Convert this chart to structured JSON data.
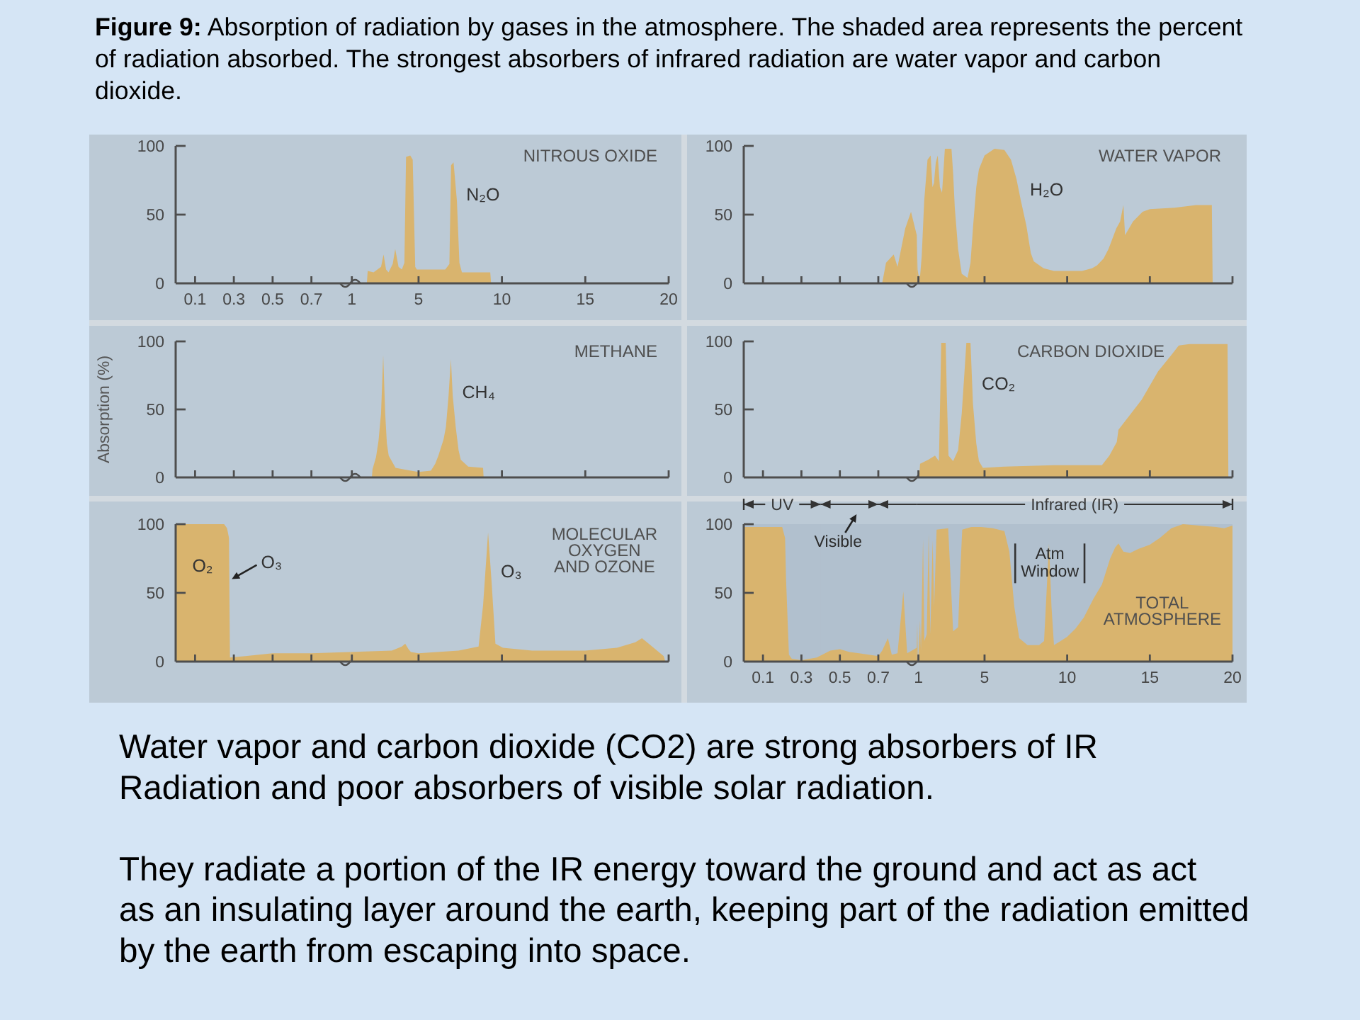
{
  "chart_data": [
    {
      "type": "other",
      "title": "Figure 9: Absorption of radiation by gases in the atmosphere. The shaded area represents the percent of radiation absorbed. The strongest absorbers of infrared radiation are water vapor and carbon dioxide."
    },
    {
      "type": "area",
      "xlim": [
        0,
        0.9
      ],
      "xticks": [
        0.1,
        0.3,
        0.5,
        0.7
      ],
      "ylim": [
        0,
        100
      ],
      "yticks": [
        0,
        50,
        100
      ]
    },
    {
      "type": "area",
      "title": "NITROUS OXIDE",
      "series": [
        {
          "name": "N₂O",
          "color": "#d9b46e",
          "x": [
            1.9,
            1.95,
            2.3,
            2.75,
            2.9,
            3.05,
            3.2,
            3.45,
            3.6,
            3.8,
            4.0,
            4.15,
            4.25,
            4.5,
            4.65,
            4.8,
            4.9,
            5.5,
            6.6,
            6.85,
            6.95,
            7.1,
            7.3,
            7.45,
            7.6,
            9.3,
            9.35
          ],
          "values": [
            0,
            9,
            8,
            12,
            21,
            10,
            8,
            14,
            25,
            12,
            10,
            15,
            92,
            93,
            90,
            12,
            10,
            10,
            10,
            14,
            86,
            88,
            60,
            15,
            8,
            8,
            0
          ]
        }
      ],
      "xlim": [
        0.9,
        20
      ],
      "xticks": [
        1,
        5,
        10,
        15,
        20
      ],
      "ylim": [
        0,
        100
      ],
      "tick_labels": "x"
    },
    {
      "type": "area",
      "series": [
        {
          "color": "#d9b46e",
          "x": [
            0.72,
            0.74,
            0.78,
            0.8,
            0.84,
            0.87,
            0.9
          ],
          "values": [
            0,
            15,
            21,
            12,
            40,
            52,
            35
          ]
        }
      ],
      "xlim": [
        0,
        0.9
      ],
      "xticks": [
        0.1,
        0.3,
        0.5,
        0.7
      ],
      "ylim": [
        0,
        100
      ],
      "yticks": [
        0,
        50,
        100
      ],
      "tick_labels": "y"
    },
    {
      "type": "area",
      "title": "WATER VAPOR",
      "series": [
        {
          "name": "H₂O",
          "color": "#d9b46e",
          "x": [
            0.9,
            0.95,
            1.0,
            1.1,
            1.2,
            1.35,
            1.55,
            1.74,
            1.85,
            1.94,
            2.05,
            2.17,
            2.3,
            2.43,
            2.6,
            3.0,
            3.1,
            3.2,
            3.4,
            3.62,
            3.97,
            4.15,
            4.31,
            4.5,
            4.66,
            5.0,
            5.6,
            6.2,
            6.6,
            6.93,
            7.2,
            7.53,
            7.8,
            7.98,
            8.57,
            9.2,
            9.76,
            10.9,
            11.5,
            11.8,
            12.2,
            12.5,
            12.97,
            13.2,
            13.4,
            13.5,
            13.98,
            14.56,
            15,
            16.5,
            17.8,
            18.75,
            18.8
          ],
          "values": [
            35,
            10,
            6,
            5,
            20,
            60,
            90,
            93,
            70,
            73,
            88,
            93,
            70,
            66,
            98,
            98,
            80,
            55,
            25,
            7,
            4,
            15,
            42,
            70,
            83,
            93,
            98,
            97,
            90,
            76,
            60,
            42,
            22,
            16,
            11,
            9,
            9,
            9,
            11,
            13,
            18,
            25,
            40,
            45,
            57,
            35,
            45,
            52,
            54,
            55,
            57,
            57,
            0
          ]
        }
      ],
      "xlim": [
        0.9,
        20
      ],
      "xticks": [
        1,
        5,
        10,
        15,
        20
      ],
      "ylim": [
        0,
        100
      ],
      "tick_labels": false
    },
    {
      "type": "area",
      "ylabel": "Absorption (%)",
      "xlim": [
        0,
        0.9
      ],
      "xticks": [
        0.1,
        0.3,
        0.5,
        0.7
      ],
      "ylim": [
        0,
        100
      ],
      "yticks": [
        0,
        50,
        100
      ],
      "tick_labels": "y"
    },
    {
      "type": "area",
      "title": "METHANE",
      "series": [
        {
          "name": "CH₄",
          "color": "#d9b46e",
          "x": [
            2.2,
            2.24,
            2.45,
            2.6,
            2.75,
            2.88,
            3.0,
            3.1,
            3.21,
            3.62,
            4.54,
            5.0,
            5.74,
            6.0,
            6.19,
            6.5,
            6.64,
            6.8,
            6.94,
            7.05,
            7.23,
            7.4,
            7.53,
            7.98,
            8.87,
            8.9
          ],
          "values": [
            0,
            6,
            15,
            27,
            47,
            90,
            47,
            25,
            16,
            7,
            5,
            4,
            5,
            10,
            16,
            28,
            37,
            60,
            87,
            60,
            37,
            20,
            13,
            8,
            7,
            0
          ]
        }
      ],
      "xlim": [
        0.9,
        20
      ],
      "xticks": [
        1,
        5,
        10,
        15,
        20
      ],
      "ylim": [
        0,
        100
      ],
      "tick_labels": false
    },
    {
      "type": "area",
      "xlim": [
        0,
        0.9
      ],
      "xticks": [
        0.1,
        0.3,
        0.5,
        0.7
      ],
      "ylim": [
        0,
        100
      ],
      "yticks": [
        0,
        50,
        100
      ],
      "tick_labels": "y"
    },
    {
      "type": "area",
      "title": "CARBON DIOXIDE",
      "series": [
        {
          "name": "CO₂",
          "color": "#d9b46e",
          "x": [
            1.05,
            1.1,
            1.6,
            2.0,
            2.24,
            2.32,
            2.38,
            2.65,
            2.72,
            2.82,
            3.1,
            3.4,
            3.62,
            3.8,
            3.9,
            4.15,
            4.3,
            4.5,
            4.66,
            4.9,
            6.2,
            9.2,
            12.1,
            12.55,
            13.0,
            13.1,
            14.5,
            15.5,
            16.3,
            16.75,
            17.4,
            19.7,
            19.75
          ],
          "values": [
            0,
            10,
            13,
            16,
            12,
            60,
            99,
            99,
            60,
            16,
            12,
            20,
            47,
            80,
            99,
            99,
            54,
            25,
            12,
            7,
            8,
            9,
            9,
            16,
            26,
            35,
            57,
            78,
            90,
            97,
            98,
            98,
            0
          ]
        }
      ],
      "xlim": [
        0.9,
        20
      ],
      "xticks": [
        1,
        5,
        10,
        15,
        20
      ],
      "ylim": [
        0,
        100
      ],
      "tick_labels": false
    },
    {
      "type": "area",
      "series": [
        {
          "name": "O₂",
          "color": "#d9b46e",
          "x": [
            0,
            0.25,
            0.265,
            0.275,
            0.28,
            0.36,
            0.5,
            0.7,
            0.9
          ],
          "values": [
            100,
            100,
            97,
            90,
            3,
            4,
            6,
            6,
            7
          ]
        }
      ],
      "xlim": [
        0,
        0.9
      ],
      "xticks": [
        0.1,
        0.3,
        0.5,
        0.7
      ],
      "ylim": [
        0,
        100
      ],
      "yticks": [
        0,
        50,
        100
      ],
      "tick_labels": "y",
      "annotations": [
        {
          "text": "O₃",
          "x": 0.275,
          "y": 60
        }
      ]
    },
    {
      "type": "area",
      "title": "MOLECULAR OXYGEN AND OZONE",
      "series": [
        {
          "name": "O₃",
          "color": "#d9b46e",
          "x": [
            0.9,
            1.0,
            3.4,
            4.0,
            4.2,
            4.4,
            4.54,
            5.0,
            7.4,
            8.6,
            8.87,
            9.17,
            9.38,
            9.61,
            10.06,
            11.8,
            15,
            16.9,
            18.0,
            18.4,
            19.1,
            19.7,
            19.8
          ],
          "values": [
            7,
            7,
            8,
            11,
            13,
            9,
            7,
            6,
            8,
            11,
            41,
            94,
            58,
            13,
            10,
            8,
            8,
            10,
            14,
            17,
            10,
            4,
            0
          ]
        }
      ],
      "xlim": [
        0.9,
        20
      ],
      "xticks": [
        1,
        5,
        10,
        15,
        20
      ],
      "ylim": [
        0,
        100
      ],
      "tick_labels": false
    },
    {
      "type": "area",
      "series": [
        {
          "color": "#d9b46e",
          "x": [
            0,
            0.2,
            0.215,
            0.22,
            0.235,
            0.25,
            0.3,
            0.38,
            0.45,
            0.5,
            0.55,
            0.6,
            0.65,
            0.7,
            0.72,
            0.75,
            0.77,
            0.8,
            0.83,
            0.85,
            0.9
          ],
          "values": [
            98,
            98,
            90,
            60,
            5,
            2,
            1,
            3,
            8,
            9,
            7,
            6,
            5,
            4,
            8,
            17,
            5,
            6,
            51,
            6,
            10
          ]
        }
      ],
      "xlim": [
        0,
        0.9
      ],
      "xticks": [
        0.1,
        0.3,
        0.5,
        0.7
      ],
      "ylim": [
        0,
        100
      ],
      "yticks": [
        0,
        50,
        100
      ],
      "bands": [
        {
          "axis": "x",
          "from": 0,
          "to": 0.4,
          "label": "UV"
        },
        {
          "axis": "x",
          "from": 0.4,
          "to": 0.7,
          "label": "Visible"
        },
        {
          "axis": "x",
          "from": 0.7,
          "to": 0.9
        }
      ]
    },
    {
      "type": "area",
      "title": "TOTAL ATMOSPHERE",
      "series": [
        {
          "color": "#d9b46e",
          "x": [
            0.9,
            0.93,
            0.96,
            1.0,
            1.1,
            1.15,
            1.28,
            1.36,
            1.5,
            1.62,
            1.72,
            1.86,
            1.95,
            2.1,
            2.8,
            2.95,
            3.1,
            3.4,
            3.55,
            3.65,
            4.2,
            4.8,
            5.5,
            6.2,
            6.5,
            6.8,
            7.1,
            7.6,
            8.3,
            8.6,
            8.75,
            8.9,
            9.05,
            9.2,
            9.6,
            10,
            10.5,
            11,
            11.6,
            12.1,
            12.6,
            12.9,
            13.1,
            13.4,
            13.8,
            14.3,
            15,
            15.6,
            16.3,
            17,
            18,
            19,
            19.5,
            20
          ],
          "values": [
            10,
            28,
            5,
            5,
            30,
            8,
            89,
            15,
            20,
            93,
            20,
            88,
            40,
            96,
            97,
            60,
            22,
            25,
            70,
            96,
            98,
            98,
            97,
            95,
            80,
            40,
            17,
            12,
            12,
            15,
            50,
            86,
            40,
            12,
            15,
            18,
            24,
            32,
            46,
            56,
            75,
            83,
            86,
            80,
            79,
            82,
            85,
            90,
            97,
            100,
            99,
            98,
            97,
            99
          ]
        }
      ],
      "xlim": [
        0.9,
        20
      ],
      "xticks": [
        1,
        5,
        10,
        15,
        20
      ],
      "ylim": [
        0,
        100
      ],
      "tick_labels": "x",
      "bands": [
        {
          "axis": "x",
          "from": 0.9,
          "to": 20,
          "label": "Infrared (IR)"
        }
      ],
      "annotations": [
        {
          "text": "Atm Window",
          "x": 8.95,
          "y": 72
        }
      ]
    },
    {
      "type": "other",
      "annotations": [
        "Water vapor and carbon dioxide (CO2) are strong absorbers of IR\nRadiation and poor absorbers of visible solar radiation.",
        "They radiate a portion of the IR energy toward the ground and act as act\nas an insulating layer around the earth, keeping part of the radiation emitted\nby the earth from escaping into space."
      ]
    }
  ]
}
